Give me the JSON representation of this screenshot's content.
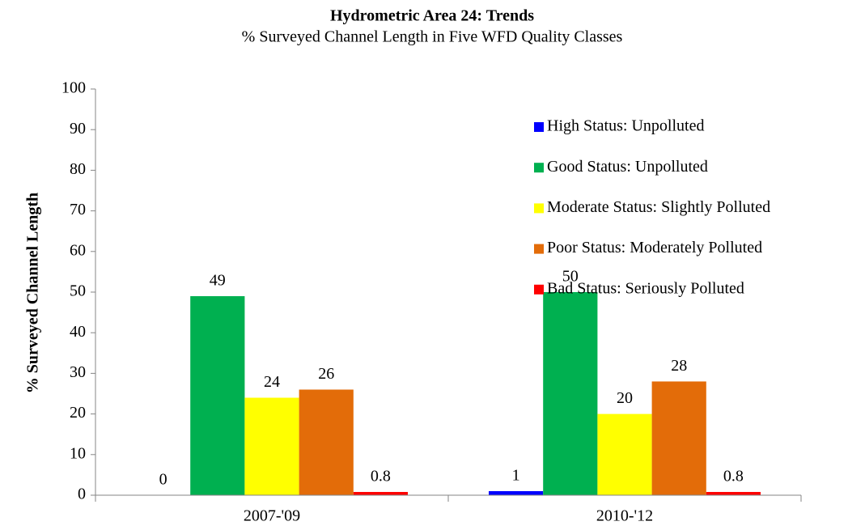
{
  "chart_data": {
    "type": "bar",
    "title": "Hydrometric Area 24:  Trends",
    "subtitle": "% Surveyed Channel Length in Five WFD Quality Classes",
    "y_label": "% Surveyed Channel  Length",
    "categories": [
      "2007-'09",
      "2010-'12"
    ],
    "series": [
      {
        "name": "High Status: Unpolluted",
        "color": "#0000ff",
        "values": [
          0,
          1
        ]
      },
      {
        "name": "Good Status: Unpolluted",
        "color": "#00b050",
        "values": [
          49,
          50
        ]
      },
      {
        "name": "Moderate Status: Slightly Polluted",
        "color": "#ffff00",
        "values": [
          24,
          20
        ]
      },
      {
        "name": "Poor Status: Moderately Polluted",
        "color": "#e36c09",
        "values": [
          26,
          28
        ]
      },
      {
        "name": "Bad Status: Seriously Polluted",
        "color": "#ff0000",
        "values": [
          0.8,
          0.8
        ]
      }
    ],
    "ylim": [
      0,
      100
    ],
    "yticks": [
      0,
      10,
      20,
      30,
      40,
      50,
      60,
      70,
      80,
      90,
      100
    ],
    "grid": false,
    "legend": "top-right"
  }
}
